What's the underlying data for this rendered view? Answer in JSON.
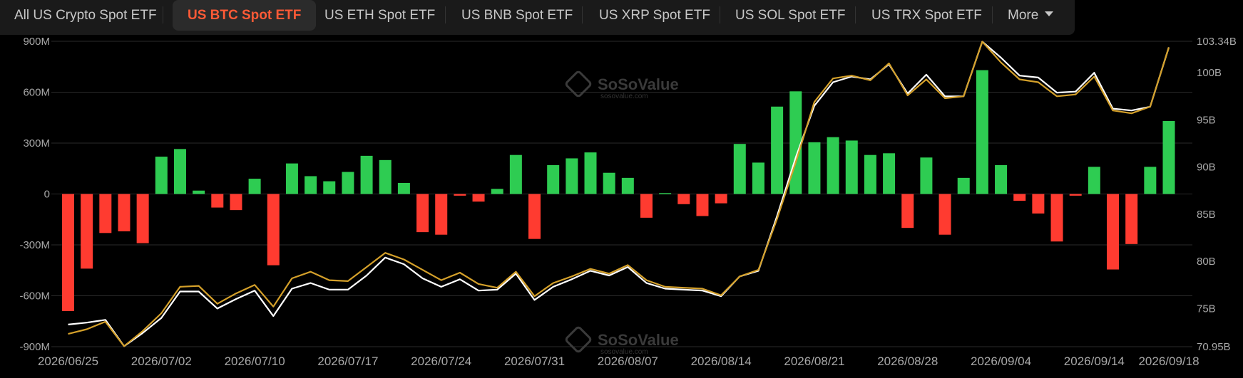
{
  "tabs": [
    {
      "label": "All US Crypto Spot ETF",
      "active": false
    },
    {
      "label": "US BTC Spot ETF",
      "active": true
    },
    {
      "label": "US ETH Spot ETF",
      "active": false
    },
    {
      "label": "US BNB Spot ETF",
      "active": false
    },
    {
      "label": "US XRP Spot ETF",
      "active": false
    },
    {
      "label": "US SOL Spot ETF",
      "active": false
    },
    {
      "label": "US TRX Spot ETF",
      "active": false
    }
  ],
  "more_label": "More",
  "watermark": {
    "brand": "SoSoValue",
    "domain": "sosovalue.com"
  },
  "colors": {
    "positive": "#2ecc52",
    "negative": "#ff3b30",
    "line_total_net_assets": "#ffffff",
    "line_btc_price": "#d4a02a",
    "active_tab": "#ff5a36",
    "background": "#000000"
  },
  "chart_data": {
    "type": "bar",
    "x_tick_labels": [
      "2026/06/25",
      "2026/07/02",
      "2026/07/10",
      "2026/07/17",
      "2026/07/24",
      "2026/07/31",
      "2026/08/07",
      "2026/08/14",
      "2026/08/21",
      "2026/08/28",
      "2026/09/04",
      "2026/09/14",
      "2026/09/18"
    ],
    "x_tick_index": [
      0,
      5,
      10,
      15,
      20,
      25,
      30,
      35,
      40,
      45,
      50,
      55,
      59
    ],
    "y_left": {
      "ticks": [
        "900M",
        "600M",
        "300M",
        "0",
        "-300M",
        "-600M",
        "-900M"
      ],
      "values": [
        900,
        600,
        300,
        0,
        -300,
        -600,
        -900
      ],
      "unit": "M",
      "ylim": [
        -900,
        900
      ]
    },
    "y_right": {
      "ticks": [
        "103.34B",
        "100B",
        "95B",
        "90B",
        "85B",
        "80B",
        "75B",
        "70.95B"
      ],
      "values": [
        103.34,
        100,
        95,
        90,
        85,
        80,
        75,
        70.95
      ],
      "unit": "B",
      "ylim": [
        70.95,
        103.34
      ]
    },
    "grid": true,
    "series": [
      {
        "type": "bar",
        "axis": "left",
        "values": [
          -690,
          -440,
          -230,
          -220,
          -290,
          220,
          265,
          20,
          -80,
          -95,
          90,
          -420,
          180,
          105,
          75,
          130,
          225,
          200,
          65,
          -225,
          -240,
          -10,
          -45,
          30,
          230,
          -265,
          170,
          210,
          245,
          125,
          95,
          -140,
          5,
          -60,
          -130,
          -55,
          295,
          185,
          515,
          605,
          305,
          335,
          315,
          230,
          240,
          -200,
          215,
          -240,
          95,
          730,
          170,
          -40,
          -115,
          -280,
          -10,
          160,
          -445,
          -295,
          160,
          430
        ]
      },
      {
        "type": "line",
        "axis": "right",
        "values": [
          73.3,
          73.5,
          73.8,
          71.0,
          72.4,
          74.0,
          76.8,
          76.8,
          75.0,
          76.0,
          76.9,
          74.2,
          77.1,
          77.7,
          77.0,
          77.0,
          78.5,
          80.4,
          79.7,
          78.2,
          77.3,
          78.1,
          76.9,
          77.0,
          78.7,
          75.9,
          77.3,
          78.1,
          79.0,
          78.5,
          79.4,
          77.7,
          77.1,
          77.0,
          76.9,
          76.3,
          78.4,
          79.0,
          84.8,
          91.0,
          96.5,
          99.0,
          99.6,
          99.3,
          100.9,
          97.8,
          99.8,
          97.5,
          97.5,
          103.3,
          101.6,
          99.7,
          99.5,
          97.9,
          98.0,
          100.0,
          96.2,
          96.0,
          96.4,
          102.7
        ]
      },
      {
        "type": "line",
        "axis": "right",
        "values": [
          72.3,
          72.8,
          73.6,
          71.0,
          72.6,
          74.5,
          77.3,
          77.4,
          75.5,
          76.6,
          77.5,
          75.2,
          78.2,
          78.9,
          78.0,
          77.9,
          79.4,
          80.9,
          80.2,
          79.1,
          78.0,
          78.8,
          77.6,
          77.2,
          78.9,
          76.3,
          77.7,
          78.4,
          79.2,
          78.7,
          79.6,
          78.0,
          77.3,
          77.2,
          77.1,
          76.4,
          78.4,
          79.1,
          84.5,
          90.5,
          96.9,
          99.4,
          99.7,
          99.2,
          101.0,
          97.6,
          99.3,
          97.3,
          97.5,
          103.3,
          101.1,
          99.3,
          99.0,
          97.5,
          97.7,
          99.6,
          96.0,
          95.7,
          96.4,
          102.7
        ]
      }
    ]
  }
}
